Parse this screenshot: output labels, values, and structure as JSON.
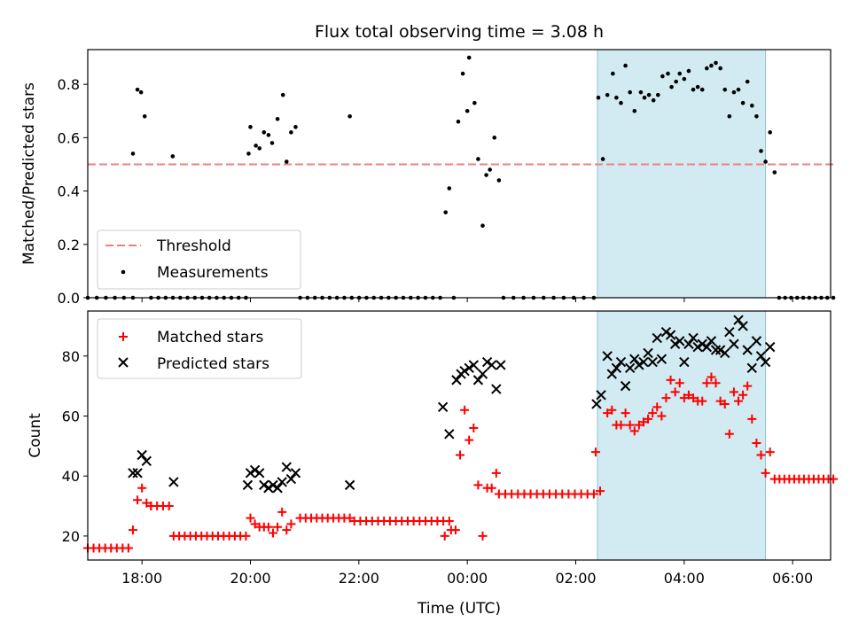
{
  "title": "Flux total observing time = 3.08 h",
  "colors": {
    "threshold": "#f08080",
    "measurement": "#000000",
    "matched": "#ff0000",
    "predicted": "#000000",
    "highlight": "#add8e6"
  },
  "chart_data": [
    {
      "type": "scatter",
      "ylabel": "Matched/Predicted stars",
      "xlim": [
        17.0,
        6.7
      ],
      "ylim": [
        0,
        0.93
      ],
      "yticks": [
        "0.0",
        "0.2",
        "0.4",
        "0.6",
        "0.8"
      ],
      "legend": {
        "position": "bottom-left",
        "entries": [
          "Threshold",
          "Measurements"
        ]
      },
      "highlight_span": [
        "02:24",
        "05:30"
      ],
      "threshold": {
        "name": "Threshold",
        "value": 0.5,
        "x_range": [
          "17:00",
          "06:45"
        ]
      },
      "measurements": {
        "name": "Measurements",
        "points": [
          [
            "17:50",
            0.54
          ],
          [
            "17:55",
            0.78
          ],
          [
            "17:59",
            0.77
          ],
          [
            "18:03",
            0.68
          ],
          [
            "18:34",
            0.53
          ],
          [
            "19:58",
            0.54
          ],
          [
            "20:00",
            0.64
          ],
          [
            "20:06",
            0.57
          ],
          [
            "20:10",
            0.56
          ],
          [
            "20:15",
            0.62
          ],
          [
            "20:20",
            0.61
          ],
          [
            "20:24",
            0.58
          ],
          [
            "20:30",
            0.67
          ],
          [
            "20:36",
            0.76
          ],
          [
            "20:40",
            0.51
          ],
          [
            "20:45",
            0.62
          ],
          [
            "20:50",
            0.64
          ],
          [
            "21:50",
            0.68
          ],
          [
            "23:36",
            0.32
          ],
          [
            "23:40",
            0.41
          ],
          [
            "23:50",
            0.66
          ],
          [
            "23:55",
            0.84
          ],
          [
            "24:00",
            0.7
          ],
          [
            "24:02",
            0.9
          ],
          [
            "24:08",
            0.73
          ],
          [
            "24:12",
            0.52
          ],
          [
            "24:17",
            0.27
          ],
          [
            "24:21",
            0.46
          ],
          [
            "24:25",
            0.48
          ],
          [
            "24:30",
            0.6
          ],
          [
            "24:35",
            0.44
          ],
          [
            "26:25",
            0.75
          ],
          [
            "26:30",
            0.52
          ],
          [
            "26:35",
            0.76
          ],
          [
            "26:41",
            0.84
          ],
          [
            "26:45",
            0.75
          ],
          [
            "26:50",
            0.73
          ],
          [
            "26:55",
            0.87
          ],
          [
            "27:00",
            0.77
          ],
          [
            "27:05",
            0.7
          ],
          [
            "27:12",
            0.77
          ],
          [
            "27:16",
            0.75
          ],
          [
            "27:21",
            0.76
          ],
          [
            "27:26",
            0.74
          ],
          [
            "27:31",
            0.76
          ],
          [
            "27:36",
            0.83
          ],
          [
            "27:42",
            0.84
          ],
          [
            "27:46",
            0.79
          ],
          [
            "27:51",
            0.81
          ],
          [
            "27:55",
            0.84
          ],
          [
            "28:00",
            0.82
          ],
          [
            "28:05",
            0.85
          ],
          [
            "28:10",
            0.78
          ],
          [
            "28:15",
            0.79
          ],
          [
            "28:20",
            0.78
          ],
          [
            "28:25",
            0.86
          ],
          [
            "28:30",
            0.87
          ],
          [
            "28:35",
            0.88
          ],
          [
            "28:40",
            0.86
          ],
          [
            "28:45",
            0.78
          ],
          [
            "28:50",
            0.68
          ],
          [
            "28:55",
            0.77
          ],
          [
            "29:00",
            0.78
          ],
          [
            "29:05",
            0.73
          ],
          [
            "29:10",
            0.81
          ],
          [
            "29:15",
            0.72
          ],
          [
            "29:20",
            0.68
          ],
          [
            "29:25",
            0.55
          ],
          [
            "29:30",
            0.51
          ],
          [
            "29:35",
            0.62
          ],
          [
            "29:40",
            0.47
          ]
        ],
        "zeros": [
          [
            "17:00",
            "17:50",
            6
          ],
          [
            "18:10",
            "19:55",
            14
          ],
          [
            "20:55",
            "23:30",
            20
          ],
          [
            "23:45",
            "23:45",
            1
          ],
          [
            "24:40",
            "26:20",
            10
          ],
          [
            "29:45",
            "30:45",
            10
          ]
        ]
      }
    },
    {
      "type": "scatter",
      "xlabel": "Time (UTC)",
      "ylabel": "Count",
      "xlim": [
        17.0,
        6.7
      ],
      "ylim": [
        12,
        95
      ],
      "yticks": [
        "20",
        "40",
        "60",
        "80"
      ],
      "xticks": [
        "18:00",
        "20:00",
        "22:00",
        "00:00",
        "02:00",
        "04:00",
        "06:00"
      ],
      "legend": {
        "position": "top-left",
        "entries": [
          "Matched stars",
          "Predicted stars"
        ]
      },
      "highlight_span": [
        "02:24",
        "05:30"
      ],
      "series": [
        {
          "name": "Matched stars",
          "marker": "+",
          "runs": [
            [
              "17:00",
              "17:45",
              16,
              8
            ],
            [
              "18:10",
              "18:30",
              30,
              4
            ],
            [
              "18:35",
              "19:55",
              20,
              14
            ],
            [
              "20:55",
              "21:50",
              26,
              10
            ],
            [
              "21:55",
              "23:40",
              25,
              17
            ],
            [
              "24:35",
              "26:20",
              34,
              16
            ],
            [
              "29:40",
              "30:45",
              39,
              13
            ]
          ],
          "points": [
            [
              "17:50",
              22
            ],
            [
              "17:55",
              32
            ],
            [
              "18:00",
              36
            ],
            [
              "18:05",
              31
            ],
            [
              "18:10",
              30
            ],
            [
              "20:00",
              26
            ],
            [
              "20:05",
              24
            ],
            [
              "20:10",
              23
            ],
            [
              "20:15",
              23
            ],
            [
              "20:20",
              23
            ],
            [
              "20:25",
              21
            ],
            [
              "20:30",
              23
            ],
            [
              "20:35",
              28
            ],
            [
              "20:40",
              22
            ],
            [
              "20:45",
              24
            ],
            [
              "23:35",
              20
            ],
            [
              "23:42",
              22
            ],
            [
              "23:47",
              22
            ],
            [
              "23:52",
              47
            ],
            [
              "23:57",
              62
            ],
            [
              "24:02",
              52
            ],
            [
              "24:07",
              56
            ],
            [
              "24:12",
              37
            ],
            [
              "24:17",
              20
            ],
            [
              "24:22",
              36
            ],
            [
              "24:27",
              36
            ],
            [
              "24:32",
              41
            ],
            [
              "26:22",
              48
            ],
            [
              "26:27",
              35
            ],
            [
              "26:35",
              61
            ],
            [
              "26:40",
              62
            ],
            [
              "26:45",
              57
            ],
            [
              "26:50",
              57
            ],
            [
              "26:55",
              61
            ],
            [
              "27:00",
              57
            ],
            [
              "27:05",
              55
            ],
            [
              "27:10",
              57
            ],
            [
              "27:15",
              58
            ],
            [
              "27:20",
              59
            ],
            [
              "27:25",
              61
            ],
            [
              "27:30",
              63
            ],
            [
              "27:35",
              60
            ],
            [
              "27:40",
              66
            ],
            [
              "27:45",
              72
            ],
            [
              "27:50",
              68
            ],
            [
              "27:55",
              71
            ],
            [
              "28:00",
              66
            ],
            [
              "28:05",
              67
            ],
            [
              "28:10",
              66
            ],
            [
              "28:15",
              65
            ],
            [
              "28:20",
              65
            ],
            [
              "28:25",
              71
            ],
            [
              "28:30",
              73
            ],
            [
              "28:35",
              71
            ],
            [
              "28:40",
              65
            ],
            [
              "28:45",
              64
            ],
            [
              "28:50",
              54
            ],
            [
              "28:55",
              68
            ],
            [
              "29:00",
              65
            ],
            [
              "29:05",
              67
            ],
            [
              "29:10",
              70
            ],
            [
              "29:15",
              59
            ],
            [
              "29:20",
              51
            ],
            [
              "29:25",
              47
            ],
            [
              "29:30",
              41
            ],
            [
              "29:35",
              48
            ]
          ]
        },
        {
          "name": "Predicted stars",
          "marker": "x",
          "points": [
            [
              "17:50",
              41
            ],
            [
              "17:55",
              41
            ],
            [
              "18:00",
              47
            ],
            [
              "18:05",
              45
            ],
            [
              "18:35",
              38
            ],
            [
              "19:57",
              37
            ],
            [
              "20:00",
              41
            ],
            [
              "20:05",
              42
            ],
            [
              "20:10",
              41
            ],
            [
              "20:15",
              37
            ],
            [
              "20:20",
              36
            ],
            [
              "20:25",
              37
            ],
            [
              "20:30",
              36
            ],
            [
              "20:35",
              38
            ],
            [
              "20:40",
              43
            ],
            [
              "20:45",
              39
            ],
            [
              "20:50",
              41
            ],
            [
              "21:50",
              37
            ],
            [
              "23:33",
              63
            ],
            [
              "23:40",
              54
            ],
            [
              "23:48",
              72
            ],
            [
              "23:53",
              74
            ],
            [
              "23:57",
              75
            ],
            [
              "24:02",
              76
            ],
            [
              "24:07",
              77
            ],
            [
              "24:12",
              72
            ],
            [
              "24:17",
              74
            ],
            [
              "24:22",
              78
            ],
            [
              "24:27",
              77
            ],
            [
              "24:32",
              69
            ],
            [
              "24:37",
              77
            ],
            [
              "26:23",
              64
            ],
            [
              "26:28",
              67
            ],
            [
              "26:35",
              80
            ],
            [
              "26:40",
              74
            ],
            [
              "26:45",
              76
            ],
            [
              "26:50",
              78
            ],
            [
              "26:55",
              70
            ],
            [
              "27:00",
              76
            ],
            [
              "27:05",
              79
            ],
            [
              "27:10",
              77
            ],
            [
              "27:15",
              78
            ],
            [
              "27:20",
              81
            ],
            [
              "27:25",
              78
            ],
            [
              "27:30",
              86
            ],
            [
              "27:35",
              79
            ],
            [
              "27:40",
              88
            ],
            [
              "27:45",
              87
            ],
            [
              "27:50",
              84
            ],
            [
              "27:55",
              85
            ],
            [
              "28:00",
              78
            ],
            [
              "28:05",
              84
            ],
            [
              "28:10",
              86
            ],
            [
              "28:15",
              83
            ],
            [
              "28:20",
              84
            ],
            [
              "28:25",
              83
            ],
            [
              "28:30",
              85
            ],
            [
              "28:35",
              82
            ],
            [
              "28:40",
              82
            ],
            [
              "28:45",
              81
            ],
            [
              "28:50",
              88
            ],
            [
              "28:55",
              84
            ],
            [
              "29:00",
              92
            ],
            [
              "29:05",
              90
            ],
            [
              "29:10",
              82
            ],
            [
              "29:15",
              76
            ],
            [
              "29:20",
              85
            ],
            [
              "29:25",
              80
            ],
            [
              "29:30",
              78
            ],
            [
              "29:35",
              83
            ]
          ]
        }
      ]
    }
  ]
}
